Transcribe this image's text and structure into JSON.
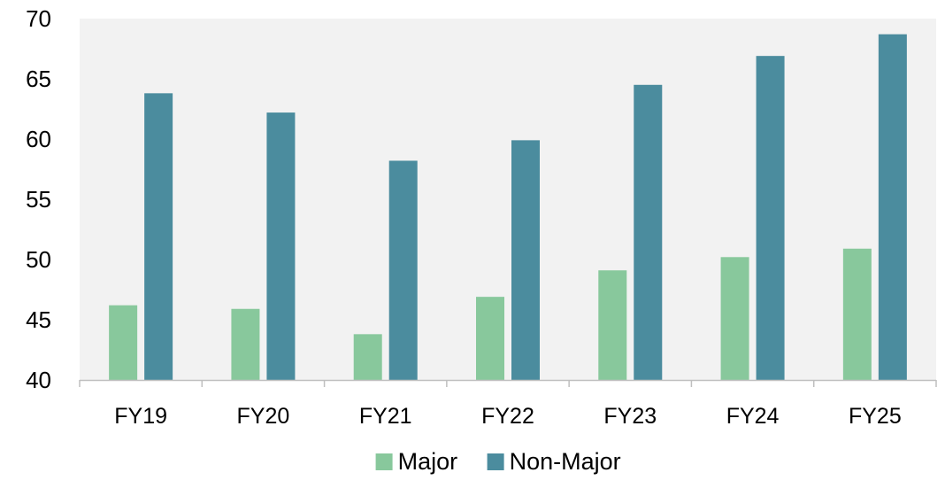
{
  "chart_data": {
    "type": "bar",
    "title": "",
    "xlabel": "",
    "ylabel": "",
    "categories": [
      "FY19",
      "FY20",
      "FY21",
      "FY22",
      "FY23",
      "FY24",
      "FY25"
    ],
    "series": [
      {
        "name": "Major",
        "color": "#88c89c",
        "values": [
          46.2,
          45.9,
          43.8,
          46.9,
          49.1,
          50.2,
          50.9
        ]
      },
      {
        "name": "Non-Major",
        "color": "#4b8c9e",
        "values": [
          63.8,
          62.2,
          58.2,
          59.9,
          64.5,
          66.9,
          68.7
        ]
      }
    ],
    "ylim": [
      40,
      70
    ],
    "yticks": [
      40,
      45,
      50,
      55,
      60,
      65,
      70
    ],
    "plot_background": "#f2f2f2",
    "axis_color": "#bfbfbf",
    "grid": false,
    "legend": "bottom"
  }
}
